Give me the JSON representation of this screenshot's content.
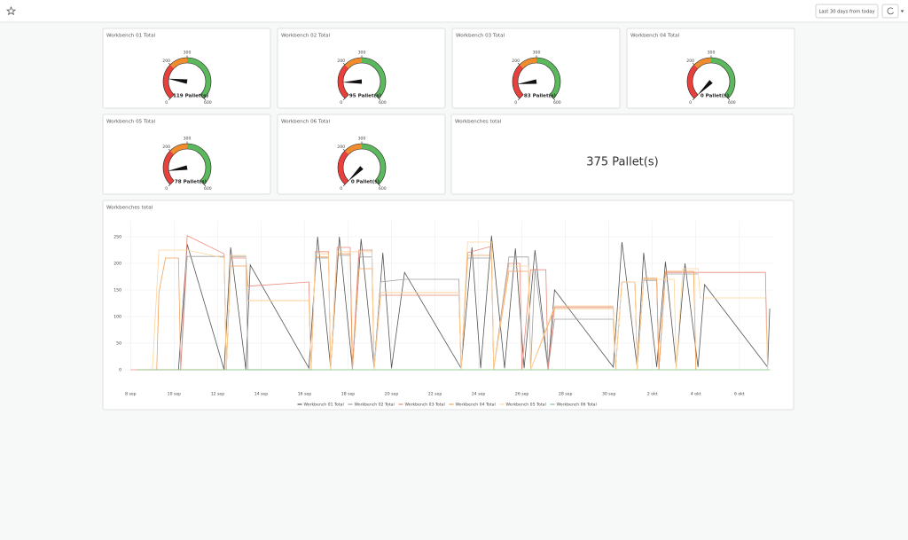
{
  "toolbar": {
    "time_range": "Last 30 days from today"
  },
  "gauge_scale": {
    "min": 0,
    "max": 600,
    "ticks": [
      0,
      200,
      300,
      600
    ],
    "bands": [
      {
        "to": 200,
        "color": "#e8413c"
      },
      {
        "to": 300,
        "color": "#f08c2e"
      },
      {
        "to": 600,
        "color": "#5cb85c"
      }
    ]
  },
  "gauges": [
    {
      "title": "Workbench 01 Total",
      "value": 119,
      "value_label": "119 Pallet(s)"
    },
    {
      "title": "Workbench 02 Total",
      "value": 95,
      "value_label": "95 Pallet(s)"
    },
    {
      "title": "Workbench 03 Total",
      "value": 83,
      "value_label": "83 Pallet(s)"
    },
    {
      "title": "Workbench 04 Total",
      "value": 0,
      "value_label": "0 Pallet(s)"
    },
    {
      "title": "Workbench 05 Total",
      "value": 78,
      "value_label": "78 Pallet(s)"
    },
    {
      "title": "Workbench 06 Total",
      "value": 0,
      "value_label": "0 Pallet(s)"
    }
  ],
  "stat": {
    "title": "Workbenches total",
    "value": 375,
    "value_label": "375 Pallet(s)"
  },
  "chart_data": {
    "type": "line",
    "title": "Workbenches total",
    "xlim": [
      -0.3,
      29.6
    ],
    "ylim": [
      0,
      280
    ],
    "xticks": [
      {
        "value": 0,
        "label": "8 sep"
      },
      {
        "value": 2,
        "label": "10 sep"
      },
      {
        "value": 4,
        "label": "12 sep"
      },
      {
        "value": 6,
        "label": "14 sep"
      },
      {
        "value": 8,
        "label": "16 sep"
      },
      {
        "value": 10,
        "label": "18 sep"
      },
      {
        "value": 12,
        "label": "20 sep"
      },
      {
        "value": 14,
        "label": "22 sep"
      },
      {
        "value": 16,
        "label": "24 sep"
      },
      {
        "value": 18,
        "label": "26 sep"
      },
      {
        "value": 20,
        "label": "28 sep"
      },
      {
        "value": 22,
        "label": "30 sep"
      },
      {
        "value": 24,
        "label": "2 okt"
      },
      {
        "value": 26,
        "label": "4 okt"
      },
      {
        "value": 28,
        "label": "6 okt"
      }
    ],
    "yticks": [
      0,
      50,
      100,
      150,
      200,
      250
    ],
    "grid": true,
    "legend": "bottom",
    "series": [
      {
        "name": "Workbench 01 Total",
        "color": "#555555",
        "x": [
          2.2,
          2.6,
          4.3,
          4.6,
          5.3,
          5.5,
          8.2,
          8.6,
          9.2,
          9.6,
          10.2,
          10.6,
          11.2,
          11.6,
          12.0,
          12.6,
          15.2,
          15.7,
          16.1,
          16.6,
          17.2,
          17.7,
          18.1,
          18.6,
          19.2,
          19.5,
          22.2,
          22.6,
          23.3,
          23.6,
          24.2,
          24.6,
          25.1,
          25.5,
          26.1,
          26.4,
          29.3,
          29.4
        ],
        "values": [
          0,
          236,
          0,
          230,
          0,
          197,
          3,
          250,
          3,
          250,
          3,
          246,
          3,
          220,
          3,
          183,
          3,
          230,
          3,
          252,
          3,
          228,
          3,
          225,
          3,
          150,
          5,
          240,
          5,
          220,
          5,
          203,
          5,
          200,
          5,
          160,
          5,
          115
        ]
      },
      {
        "name": "Workbench 02 Total",
        "color": "#a0a0a0",
        "x": [
          2.3,
          2.6,
          4.3,
          4.4,
          4.6,
          5.3,
          5.4,
          8.3,
          8.5,
          9.1,
          9.2,
          9.5,
          10.1,
          10.2,
          10.5,
          11.1,
          11.2,
          11.5,
          12.6,
          15.1,
          15.2,
          15.5,
          16.6,
          16.7,
          17.4,
          18.3,
          18.4,
          18.6,
          19.2,
          19.5,
          22.2,
          22.3,
          22.6,
          23.2,
          23.3,
          23.6,
          24.2,
          24.3,
          24.6,
          26.1
        ],
        "values": [
          0,
          213,
          213,
          0,
          213,
          213,
          0,
          0,
          210,
          210,
          0,
          215,
          215,
          0,
          212,
          212,
          0,
          165,
          170,
          170,
          0,
          210,
          210,
          0,
          212,
          212,
          0,
          190,
          0,
          95,
          95,
          0,
          165,
          165,
          0,
          168,
          168,
          0,
          180,
          180
        ]
      },
      {
        "name": "Workbench 03 Total",
        "color": "#e9897a",
        "x": [
          0,
          2.3,
          2.6,
          4.3,
          4.4,
          4.6,
          5.3,
          5.4,
          8.2,
          8.3,
          8.5,
          9.1,
          9.2,
          9.5,
          10.1,
          10.2,
          10.5,
          11.1,
          11.2,
          11.5,
          15.1,
          15.2,
          15.5,
          16.6,
          16.7,
          17.4,
          17.9,
          18.0,
          18.4,
          19.1,
          19.2,
          19.5,
          22.2,
          22.3,
          22.6,
          23.2,
          23.3,
          23.6,
          24.2,
          24.3,
          24.6,
          29.2,
          29.3
        ],
        "values": [
          0,
          0,
          252,
          218,
          0,
          210,
          210,
          157,
          165,
          0,
          222,
          222,
          0,
          230,
          230,
          0,
          225,
          225,
          0,
          140,
          140,
          0,
          220,
          232,
          0,
          200,
          200,
          0,
          188,
          188,
          0,
          118,
          118,
          0,
          165,
          165,
          0,
          170,
          170,
          0,
          183,
          183,
          0
        ]
      },
      {
        "name": "Workbench 04 Total",
        "color": "#f4a259",
        "x": [
          1.2,
          1.3,
          1.6,
          2.2,
          2.3,
          4.4,
          4.6,
          5.3,
          5.4,
          8.2,
          8.3,
          8.5,
          9.1,
          9.2,
          9.5,
          10.1,
          10.2,
          10.5,
          11.1,
          11.2,
          11.5,
          15.1,
          15.2,
          15.5,
          16.6,
          16.7,
          17.4,
          18.3,
          18.4,
          19.5,
          22.2,
          22.3,
          22.6,
          23.2,
          23.3,
          23.6,
          24.2,
          24.3,
          24.6,
          25.9,
          26.0
        ],
        "values": [
          0,
          145,
          210,
          210,
          0,
          0,
          195,
          195,
          130,
          130,
          0,
          212,
          212,
          0,
          218,
          218,
          0,
          190,
          190,
          0,
          145,
          145,
          0,
          215,
          215,
          0,
          185,
          185,
          0,
          115,
          115,
          0,
          165,
          165,
          0,
          172,
          172,
          0,
          185,
          185,
          0
        ]
      },
      {
        "name": "Workbench 05 Total",
        "color": "#fdd59a",
        "x": [
          1.0,
          1.3,
          2.6,
          4.3,
          4.4,
          4.6,
          5.3,
          5.4,
          8.2,
          8.3,
          8.5,
          9.1,
          9.2,
          9.5,
          11.1,
          11.2,
          11.5,
          15.1,
          15.2,
          15.5,
          16.6,
          16.7,
          17.4,
          18.3,
          18.4,
          19.5,
          22.2,
          22.3,
          22.6,
          23.2,
          23.3,
          23.6,
          25.0,
          25.1,
          25.4,
          26.1,
          26.2,
          29.2,
          29.3
        ],
        "values": [
          0,
          225,
          225,
          210,
          0,
          215,
          215,
          130,
          130,
          0,
          218,
          218,
          0,
          222,
          222,
          0,
          145,
          145,
          0,
          240,
          240,
          0,
          195,
          195,
          0,
          120,
          120,
          0,
          165,
          165,
          0,
          170,
          170,
          0,
          190,
          190,
          135,
          135,
          0
        ]
      },
      {
        "name": "Workbench 06 Total",
        "color": "#7bc27b",
        "x": [
          0.3,
          29.4
        ],
        "values": [
          0,
          0
        ]
      }
    ]
  }
}
